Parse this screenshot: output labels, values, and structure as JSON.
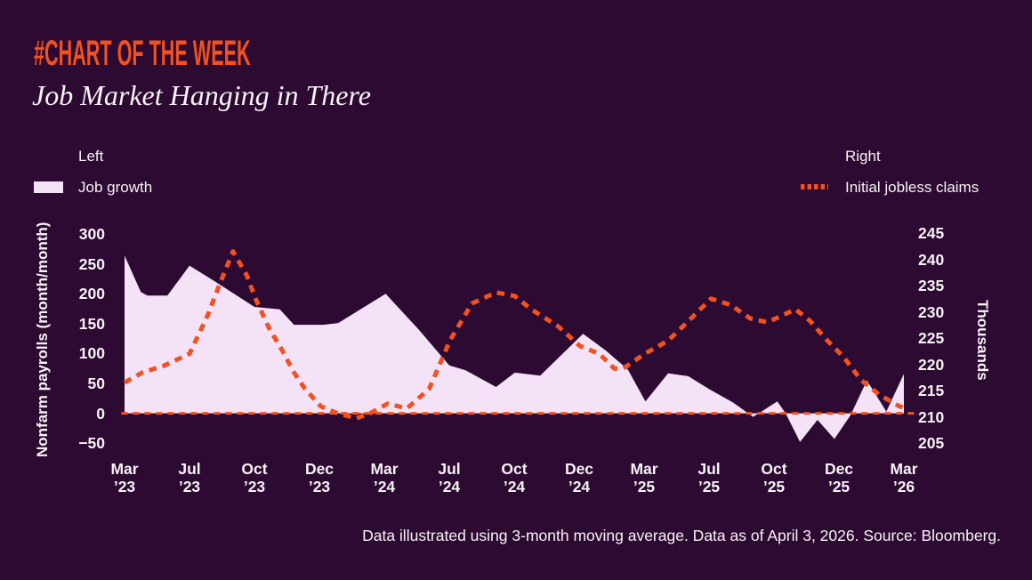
{
  "theme": {
    "background": "#2C0A31",
    "accent_orange": "#F3511F",
    "area_fill": "#F4E2F7",
    "text_color": "#F9F2F7"
  },
  "header": {
    "kicker": "#CHART OF THE WEEK",
    "title": "Job Market Hanging in There"
  },
  "legend": {
    "left_group_label": "Left",
    "left_series_label": "Job growth",
    "right_group_label": "Right",
    "right_series_label": "Initial jobless claims"
  },
  "footer": {
    "note": "Data illustrated using 3-month moving average. Data as of April 3, 2026. Source: Bloomberg."
  },
  "chart_data": {
    "type": "combo-dual-axis",
    "subtype": [
      "area",
      "dotted-line"
    ],
    "title": "Job Market Hanging in There",
    "grid": false,
    "left_axis": {
      "title": "Nonfarm payrolls (month/month)",
      "range": [
        -50,
        300
      ],
      "ticks": [
        {
          "label": "300",
          "value": 300
        },
        {
          "label": "250",
          "value": 250
        },
        {
          "label": "200",
          "value": 200
        },
        {
          "label": "150",
          "value": 150
        },
        {
          "label": "100",
          "value": 100
        },
        {
          "label": "50",
          "value": 50
        },
        {
          "label": "0",
          "value": 0
        },
        {
          "label": "−50",
          "value": -50
        }
      ]
    },
    "right_axis": {
      "title": "Thousands",
      "range": [
        205,
        245
      ],
      "ticks": [
        {
          "label": "245",
          "value": 245
        },
        {
          "label": "240",
          "value": 240
        },
        {
          "label": "235",
          "value": 235
        },
        {
          "label": "230",
          "value": 230
        },
        {
          "label": "225",
          "value": 225
        },
        {
          "label": "220",
          "value": 220
        },
        {
          "label": "215",
          "value": 215
        },
        {
          "label": "210",
          "value": 210
        },
        {
          "label": "205",
          "value": 205
        }
      ]
    },
    "x_axis": {
      "labels": [
        {
          "month": "Mar",
          "year": "’23"
        },
        {
          "month": "Jul",
          "year": "’23"
        },
        {
          "month": "Oct",
          "year": "’23"
        },
        {
          "month": "Dec",
          "year": "’23"
        },
        {
          "month": "Mar",
          "year": "’24"
        },
        {
          "month": "Jul",
          "year": "’24"
        },
        {
          "month": "Oct",
          "year": "’24"
        },
        {
          "month": "Dec",
          "year": "’24"
        },
        {
          "month": "Mar",
          "year": "’25"
        },
        {
          "month": "Jul",
          "year": "’25"
        },
        {
          "month": "Oct",
          "year": "’25"
        },
        {
          "month": "Dec",
          "year": "’25"
        },
        {
          "month": "Mar",
          "year": "’26"
        }
      ]
    },
    "zero_line": {
      "axis": "left",
      "value": 0,
      "style": "dashed",
      "color": "#F3511F"
    },
    "series": [
      {
        "name": "Job growth",
        "axis": "left",
        "style": "area",
        "color": "#F4E2F7",
        "points": [
          [
            0,
            264
          ],
          [
            0.25,
            203
          ],
          [
            0.35,
            197
          ],
          [
            0.66,
            197
          ],
          [
            1.0,
            247
          ],
          [
            1.37,
            222
          ],
          [
            2.0,
            178
          ],
          [
            2.39,
            174
          ],
          [
            2.61,
            148
          ],
          [
            3.06,
            148
          ],
          [
            3.29,
            151
          ],
          [
            4.02,
            200
          ],
          [
            4.53,
            140
          ],
          [
            5.0,
            80
          ],
          [
            5.25,
            72
          ],
          [
            5.72,
            44
          ],
          [
            6.01,
            68
          ],
          [
            6.4,
            63
          ],
          [
            7.06,
            133
          ],
          [
            7.41,
            105
          ],
          [
            7.75,
            73
          ],
          [
            8.02,
            20
          ],
          [
            8.37,
            67
          ],
          [
            8.68,
            62
          ],
          [
            9.01,
            40
          ],
          [
            9.37,
            18
          ],
          [
            9.68,
            -6
          ],
          [
            10.05,
            20
          ],
          [
            10.18,
            0
          ],
          [
            10.4,
            -48
          ],
          [
            10.67,
            -11
          ],
          [
            10.93,
            -43
          ],
          [
            11.18,
            -3
          ],
          [
            11.43,
            55
          ],
          [
            11.73,
            3
          ],
          [
            12.0,
            66
          ]
        ]
      },
      {
        "name": "Initial jobless claims",
        "axis": "right",
        "style": "dotted",
        "color": "#F3511F",
        "points": [
          [
            0,
            216.5
          ],
          [
            0.27,
            218.4
          ],
          [
            0.62,
            219.8
          ],
          [
            1.0,
            222
          ],
          [
            1.28,
            229.3
          ],
          [
            1.47,
            235.4
          ],
          [
            1.67,
            241.5
          ],
          [
            1.88,
            237
          ],
          [
            2.02,
            232.4
          ],
          [
            2.22,
            227
          ],
          [
            2.43,
            222.6
          ],
          [
            2.61,
            218.4
          ],
          [
            2.78,
            215.3
          ],
          [
            3.02,
            212
          ],
          [
            3.25,
            210.8
          ],
          [
            3.57,
            209.7
          ],
          [
            3.8,
            210.8
          ],
          [
            4.05,
            212.5
          ],
          [
            4.35,
            211.6
          ],
          [
            4.69,
            215.3
          ],
          [
            5.01,
            224.5
          ],
          [
            5.35,
            231.6
          ],
          [
            5.72,
            233.7
          ],
          [
            6.01,
            233
          ],
          [
            6.27,
            230.4
          ],
          [
            6.68,
            227.2
          ],
          [
            7.01,
            223.5
          ],
          [
            7.31,
            222
          ],
          [
            7.54,
            219.2
          ],
          [
            7.68,
            219.2
          ],
          [
            8.01,
            222
          ],
          [
            8.37,
            224.5
          ],
          [
            8.68,
            228.2
          ],
          [
            9.03,
            232.5
          ],
          [
            9.33,
            231.3
          ],
          [
            9.64,
            228.7
          ],
          [
            9.9,
            228
          ],
          [
            10.33,
            230.5
          ],
          [
            10.56,
            228.2
          ],
          [
            10.8,
            224.8
          ],
          [
            11.07,
            221.4
          ],
          [
            11.34,
            217
          ],
          [
            11.62,
            214.2
          ],
          [
            11.93,
            212
          ],
          [
            12.0,
            211.7
          ]
        ]
      }
    ]
  }
}
